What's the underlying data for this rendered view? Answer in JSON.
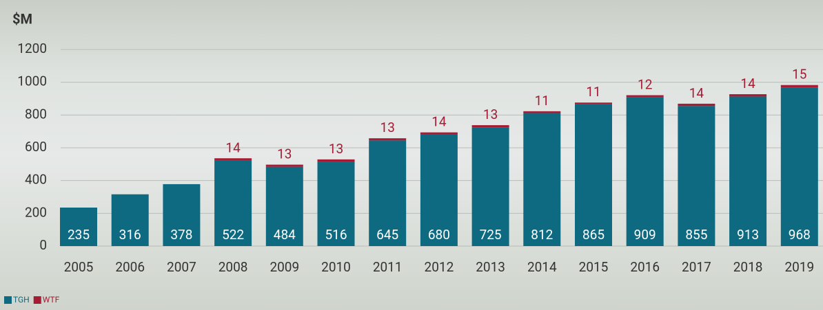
{
  "chart_data": {
    "type": "stacked_bar",
    "title": "$M",
    "categories": [
      "2005",
      "2006",
      "2007",
      "2008",
      "2009",
      "2010",
      "2011",
      "2012",
      "2013",
      "2014",
      "2015",
      "2016",
      "2017",
      "2018",
      "2019"
    ],
    "series": [
      {
        "name": "TGH",
        "color": "#0e6a80",
        "values": [
          235,
          316,
          378,
          522,
          484,
          516,
          645,
          680,
          725,
          812,
          865,
          909,
          855,
          913,
          968
        ]
      },
      {
        "name": "WTF",
        "color": "#a51c34",
        "values": [
          null,
          null,
          null,
          14,
          13,
          13,
          13,
          14,
          13,
          11,
          11,
          12,
          14,
          14,
          15
        ]
      }
    ],
    "ylim": [
      0,
      1200
    ],
    "yticks": [
      0,
      200,
      400,
      600,
      800,
      1000,
      1200
    ],
    "grid": true
  }
}
